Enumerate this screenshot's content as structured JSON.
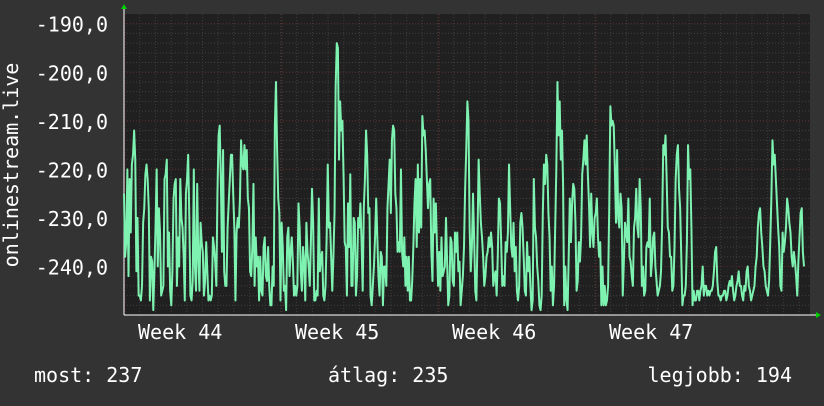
{
  "chart_data": {
    "type": "line",
    "ylabel": "onlinestream.live",
    "y_ticks": [
      "-190,0",
      "-200,0",
      "-210,0",
      "-220,0",
      "-230,0",
      "-240,0"
    ],
    "y_tick_values": [
      -190,
      -200,
      -210,
      -220,
      -230,
      -240
    ],
    "x_ticks": [
      "Week 44",
      "Week 45",
      "Week 46",
      "Week 47"
    ],
    "ylim": [
      -250,
      -188
    ],
    "grid": true,
    "colors": {
      "background": "#333333",
      "plot": "#202020",
      "line": "#7ef2b0",
      "grid_major": "#5a2a2a",
      "grid_minor": "#3e3e3e",
      "axis_arrow": "#00cc00"
    },
    "series": [
      {
        "values": [
          -225,
          -238,
          -235,
          -220,
          -242,
          -222,
          -233,
          -219,
          -217,
          -212,
          -218,
          -241,
          -230,
          -246,
          -246,
          -247,
          -244,
          -231,
          -228,
          -221,
          -219,
          -222,
          -228,
          -247,
          -238,
          -239,
          -249,
          -241,
          -232,
          -220,
          -240,
          -228,
          -233,
          -246,
          -245,
          -244,
          -222,
          -221,
          -218,
          -240,
          -233,
          -245,
          -248,
          -241,
          -226,
          -223,
          -222,
          -244,
          -234,
          -240,
          -222,
          -230,
          -232,
          -238,
          -247,
          -225,
          -222,
          -217,
          -230,
          -246,
          -247,
          -243,
          -220,
          -240,
          -245,
          -223,
          -238,
          -245,
          -231,
          -235,
          -237,
          -246,
          -243,
          -235,
          -241,
          -247,
          -246,
          -247,
          -246,
          -234,
          -236,
          -239,
          -244,
          -225,
          -213,
          -211,
          -222,
          -237,
          -216,
          -241,
          -244,
          -244,
          -232,
          -227,
          -222,
          -217,
          -217,
          -225,
          -232,
          -247,
          -233,
          -230,
          -232,
          -226,
          -214,
          -219,
          -220,
          -215,
          -220,
          -216,
          -226,
          -228,
          -241,
          -242,
          -236,
          -223,
          -244,
          -234,
          -240,
          -238,
          -247,
          -238,
          -245,
          -246,
          -236,
          -234,
          -242,
          -243,
          -236,
          -244,
          -248,
          -248,
          -240,
          -244,
          -211,
          -202,
          -216,
          -226,
          -229,
          -247,
          -231,
          -236,
          -245,
          -244,
          -249,
          -234,
          -232,
          -242,
          -237,
          -234,
          -239,
          -246,
          -244,
          -246,
          -244,
          -227,
          -232,
          -241,
          -245,
          -236,
          -239,
          -247,
          -231,
          -237,
          -240,
          -244,
          -235,
          -224,
          -231,
          -247,
          -247,
          -245,
          -246,
          -226,
          -241,
          -238,
          -237,
          -246,
          -247,
          -244,
          -234,
          -219,
          -232,
          -231,
          -238,
          -245,
          -238,
          -229,
          -203,
          -194,
          -195,
          -218,
          -206,
          -212,
          -210,
          -221,
          -235,
          -236,
          -246,
          -227,
          -236,
          -221,
          -244,
          -244,
          -230,
          -231,
          -246,
          -242,
          -230,
          -232,
          -227,
          -235,
          -245,
          -228,
          -222,
          -212,
          -217,
          -229,
          -228,
          -246,
          -248,
          -244,
          -240,
          -234,
          -226,
          -234,
          -242,
          -246,
          -237,
          -238,
          -248,
          -240,
          -240,
          -244,
          -228,
          -223,
          -218,
          -229,
          -214,
          -211,
          -212,
          -225,
          -228,
          -237,
          -235,
          -237,
          -220,
          -237,
          -240,
          -234,
          -244,
          -238,
          -245,
          -238,
          -247,
          -247,
          -243,
          -236,
          -227,
          -222,
          -236,
          -219,
          -233,
          -222,
          -232,
          -209,
          -213,
          -212,
          -216,
          -222,
          -228,
          -223,
          -222,
          -237,
          -243,
          -226,
          -233,
          -227,
          -236,
          -244,
          -237,
          -245,
          -234,
          -242,
          -241,
          -240,
          -230,
          -239,
          -248,
          -246,
          -234,
          -235,
          -243,
          -244,
          -233,
          -237,
          -233,
          -241,
          -239,
          -248,
          -245,
          -242,
          -236,
          -224,
          -216,
          -206,
          -210,
          -232,
          -241,
          -236,
          -225,
          -234,
          -245,
          -247,
          -234,
          -218,
          -225,
          -231,
          -234,
          -238,
          -244,
          -242,
          -238,
          -237,
          -234,
          -236,
          -233,
          -236,
          -244,
          -242,
          -241,
          -246,
          -238,
          -226,
          -227,
          -235,
          -244,
          -242,
          -244,
          -235,
          -237,
          -233,
          -219,
          -228,
          -236,
          -238,
          -231,
          -241,
          -236,
          -245,
          -247,
          -244,
          -231,
          -229,
          -232,
          -238,
          -245,
          -246,
          -235,
          -241,
          -238,
          -244,
          -249,
          -247,
          -222,
          -232,
          -234,
          -240,
          -243,
          -248,
          -249,
          -246,
          -229,
          -219,
          -223,
          -217,
          -219,
          -229,
          -234,
          -245,
          -240,
          -248,
          -244,
          -232,
          -220,
          -202,
          -213,
          -206,
          -218,
          -212,
          -223,
          -248,
          -240,
          -247,
          -249,
          -238,
          -226,
          -235,
          -227,
          -223,
          -224,
          -231,
          -245,
          -243,
          -235,
          -239,
          -234,
          -221,
          -218,
          -214,
          -219,
          -213,
          -221,
          -227,
          -236,
          -225,
          -233,
          -236,
          -230,
          -229,
          -226,
          -234,
          -238,
          -235,
          -248,
          -240,
          -248,
          -244,
          -248,
          -247,
          -244,
          -228,
          -207,
          -211,
          -210,
          -211,
          -220,
          -231,
          -216,
          -230,
          -232,
          -225,
          -228,
          -246,
          -239,
          -231,
          -233,
          -235,
          -226,
          -238,
          -239,
          -242,
          -244,
          -232,
          -230,
          -224,
          -232,
          -234,
          -222,
          -228,
          -244,
          -240,
          -246,
          -245,
          -236,
          -235,
          -236,
          -226,
          -242,
          -239,
          -234,
          -233,
          -240,
          -243,
          -246,
          -245,
          -244,
          -241,
          -231,
          -215,
          -217,
          -213,
          -222,
          -232,
          -233,
          -238,
          -238,
          -245,
          -244,
          -236,
          -222,
          -217,
          -215,
          -224,
          -228,
          -238,
          -248,
          -246,
          -246,
          -244,
          -235,
          -215,
          -222,
          -220,
          -232,
          -248,
          -245,
          -247,
          -247,
          -245,
          -245,
          -247,
          -245,
          -244,
          -240,
          -246,
          -244,
          -244,
          -246,
          -245,
          -246,
          -245,
          -245,
          -244,
          -241,
          -237,
          -236,
          -243,
          -246,
          -246,
          -247,
          -246,
          -246,
          -245,
          -245,
          -247,
          -246,
          -244,
          -243,
          -244,
          -242,
          -245,
          -247,
          -246,
          -244,
          -243,
          -241,
          -244,
          -244,
          -246,
          -247,
          -244,
          -245,
          -241,
          -240,
          -244,
          -245,
          -247,
          -246,
          -245,
          -244,
          -240,
          -238,
          -232,
          -229,
          -228,
          -233,
          -236,
          -240,
          -241,
          -244,
          -245,
          -246,
          -243,
          -235,
          -226,
          -214,
          -219,
          -217,
          -222,
          -227,
          -232,
          -236,
          -244,
          -245,
          -233,
          -237,
          -235,
          -232,
          -226,
          -228,
          -231,
          -233,
          -238,
          -240,
          -237,
          -239,
          -242,
          -246,
          -239,
          -234,
          -229,
          -228,
          -237,
          -240
        ]
      }
    ]
  },
  "stats": {
    "now": "most: 237",
    "avg": "átlag: 235",
    "max": "legjobb: 194"
  }
}
